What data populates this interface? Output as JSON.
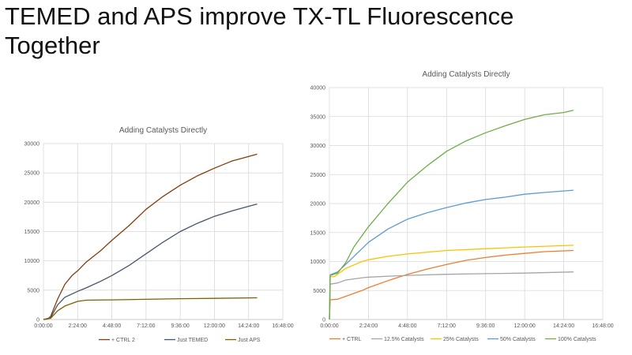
{
  "slide": {
    "title_line1": "TEMED and APS improve TX-TL Fluorescence",
    "title_line2": "Together"
  },
  "chart_data": [
    {
      "type": "line",
      "title": "Adding Catalysts Directly",
      "xlabel": "",
      "ylabel": "",
      "xlim": [
        "0:00:00",
        "16:48:00"
      ],
      "ylim": [
        0,
        30000
      ],
      "x_ticks": [
        "0:00:00",
        "2:24:00",
        "4:48:00",
        "7:12:00",
        "9:36:00",
        "12:00:00",
        "14:24:00",
        "16:48:00"
      ],
      "y_ticks": [
        "0",
        "5000",
        "10000",
        "15000",
        "20000",
        "25000",
        "30000"
      ],
      "grid": true,
      "legend": "bottom",
      "series": [
        {
          "name": "+ CTRL 2",
          "color": "#843c0c",
          "x": [
            "0:00:00",
            "0:18:00",
            "0:30:00",
            "1:00:00",
            "1:30:00",
            "2:00:00",
            "2:24:00",
            "3:00:00",
            "4:00:00",
            "4:48:00",
            "6:00:00",
            "7:12:00",
            "8:24:00",
            "9:36:00",
            "10:48:00",
            "12:00:00",
            "13:12:00",
            "14:24:00",
            "15:00:00"
          ],
          "y": [
            0,
            100,
            500,
            3500,
            6000,
            7500,
            8300,
            9800,
            11700,
            13500,
            16000,
            18800,
            21000,
            22900,
            24500,
            25800,
            27000,
            27800,
            28200
          ]
        },
        {
          "name": "Just TEMED",
          "color": "#44546a",
          "x": [
            "0:00:00",
            "0:30:00",
            "1:00:00",
            "1:30:00",
            "2:24:00",
            "3:00:00",
            "4:00:00",
            "4:48:00",
            "6:00:00",
            "7:12:00",
            "8:24:00",
            "9:36:00",
            "10:48:00",
            "12:00:00",
            "13:12:00",
            "14:24:00",
            "15:00:00"
          ],
          "y": [
            0,
            300,
            2500,
            3800,
            4800,
            5400,
            6500,
            7500,
            9200,
            11200,
            13200,
            15000,
            16400,
            17600,
            18500,
            19300,
            19700
          ]
        },
        {
          "name": "Just APS",
          "color": "#7f6000",
          "x": [
            "0:00:00",
            "0:30:00",
            "1:00:00",
            "1:30:00",
            "2:24:00",
            "3:00:00",
            "4:48:00",
            "7:12:00",
            "9:36:00",
            "12:00:00",
            "15:00:00"
          ],
          "y": [
            0,
            200,
            1500,
            2300,
            3100,
            3300,
            3350,
            3450,
            3550,
            3600,
            3700
          ]
        }
      ]
    },
    {
      "type": "line",
      "title": "Adding Catalysts Directly",
      "xlabel": "",
      "ylabel": "",
      "xlim": [
        "0:00:00",
        "16:48:00"
      ],
      "ylim": [
        0,
        40000
      ],
      "x_ticks": [
        "0:00:00",
        "2:24:00",
        "4:48:00",
        "7:12:00",
        "9:36:00",
        "12:00:00",
        "14:24:00",
        "16:48:00"
      ],
      "y_ticks": [
        "0",
        "5000",
        "10000",
        "15000",
        "20000",
        "25000",
        "30000",
        "35000",
        "40000"
      ],
      "grid": true,
      "legend": "bottom",
      "series": [
        {
          "name": "+ CTRL",
          "color": "#ed7d31",
          "x": [
            "0:00:00",
            "0:03:00",
            "0:30:00",
            "1:00:00",
            "2:00:00",
            "2:24:00",
            "3:36:00",
            "4:48:00",
            "6:00:00",
            "7:12:00",
            "8:24:00",
            "9:36:00",
            "10:48:00",
            "12:00:00",
            "13:12:00",
            "15:00:00"
          ],
          "y": [
            0,
            3400,
            3500,
            4000,
            5000,
            5500,
            6700,
            7800,
            8700,
            9500,
            10200,
            10700,
            11100,
            11400,
            11700,
            11900
          ]
        },
        {
          "name": "12.5% Catalysts",
          "color": "#a5a5a5",
          "x": [
            "0:00:00",
            "0:03:00",
            "0:30:00",
            "1:00:00",
            "2:00:00",
            "2:24:00",
            "4:48:00",
            "7:12:00",
            "9:36:00",
            "12:00:00",
            "15:00:00"
          ],
          "y": [
            0,
            6100,
            6300,
            6800,
            7200,
            7300,
            7600,
            7800,
            7900,
            8000,
            8200
          ]
        },
        {
          "name": "25% Catalysts",
          "color": "#ffc000",
          "x": [
            "0:00:00",
            "0:03:00",
            "0:18:00",
            "1:00:00",
            "2:00:00",
            "2:24:00",
            "3:36:00",
            "4:48:00",
            "7:12:00",
            "9:36:00",
            "12:00:00",
            "15:00:00"
          ],
          "y": [
            0,
            7400,
            7400,
            8800,
            10000,
            10300,
            10900,
            11300,
            11900,
            12200,
            12500,
            12800
          ]
        },
        {
          "name": "50% Catalysts",
          "color": "#5b9bd5",
          "x": [
            "0:00:00",
            "0:03:00",
            "0:30:00",
            "1:00:00",
            "2:24:00",
            "3:36:00",
            "4:48:00",
            "6:00:00",
            "7:12:00",
            "8:24:00",
            "9:36:00",
            "10:48:00",
            "12:00:00",
            "13:12:00",
            "15:00:00"
          ],
          "y": [
            0,
            7700,
            8200,
            9500,
            13300,
            15600,
            17300,
            18400,
            19300,
            20100,
            20700,
            21100,
            21600,
            21900,
            22300
          ]
        },
        {
          "name": "100% Catalysts",
          "color": "#70ad47",
          "x": [
            "0:00:00",
            "0:03:00",
            "0:30:00",
            "1:00:00",
            "1:30:00",
            "2:24:00",
            "3:36:00",
            "4:48:00",
            "6:00:00",
            "7:12:00",
            "8:24:00",
            "9:36:00",
            "10:48:00",
            "12:00:00",
            "13:12:00",
            "14:24:00",
            "15:00:00"
          ],
          "y": [
            0,
            7600,
            8000,
            9800,
            12500,
            16000,
            20000,
            23700,
            26500,
            29000,
            30800,
            32200,
            33400,
            34500,
            35300,
            35700,
            36100
          ]
        }
      ]
    }
  ]
}
